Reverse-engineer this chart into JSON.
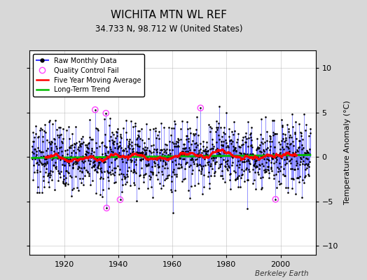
{
  "title": "WICHITA MTN WL REF",
  "subtitle": "34.733 N, 98.712 W (United States)",
  "ylabel": "Temperature Anomaly (°C)",
  "credit": "Berkeley Earth",
  "year_start": 1908,
  "year_end": 2011,
  "ylim": [
    -11,
    12
  ],
  "yticks": [
    -10,
    -5,
    0,
    5,
    10
  ],
  "bg_color": "#d8d8d8",
  "plot_bg_color": "#ffffff",
  "raw_color": "#3333ff",
  "ma_color": "#ff0000",
  "trend_color": "#00bb00",
  "qc_color": "#ff44ff",
  "seed": 37,
  "xticks": [
    1920,
    1940,
    1960,
    1980,
    2000
  ],
  "noise_std": 1.9,
  "ma_window": 60
}
